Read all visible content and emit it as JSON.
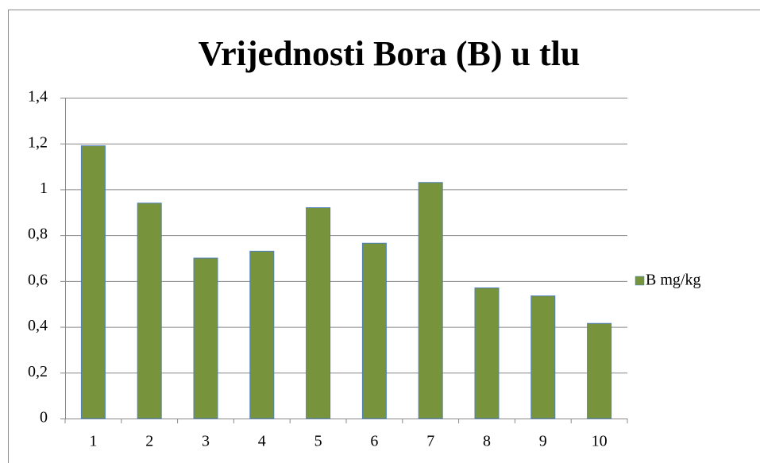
{
  "chart_data": {
    "type": "bar",
    "title": "Vrijednosti Bora (B) u tlu",
    "categories": [
      "1",
      "2",
      "3",
      "4",
      "5",
      "6",
      "7",
      "8",
      "9",
      "10"
    ],
    "series": [
      {
        "name": "B mg/kg",
        "color": "#77933c",
        "values": [
          1.19,
          0.94,
          0.7,
          0.73,
          0.92,
          0.765,
          1.03,
          0.57,
          0.535,
          0.415
        ]
      }
    ],
    "ylim": [
      0,
      1.4
    ],
    "yticks": [
      0,
      {
        "value": 0.2,
        "label": "0,2"
      },
      {
        "value": 0.4,
        "label": "0,4"
      },
      {
        "value": 0.6,
        "label": "0,6"
      },
      {
        "value": 0.8,
        "label": "0,8"
      },
      1,
      {
        "value": 1.2,
        "label": "1,2"
      },
      {
        "value": 1.4,
        "label": "1,4"
      }
    ],
    "grid": true,
    "legend": "right"
  }
}
